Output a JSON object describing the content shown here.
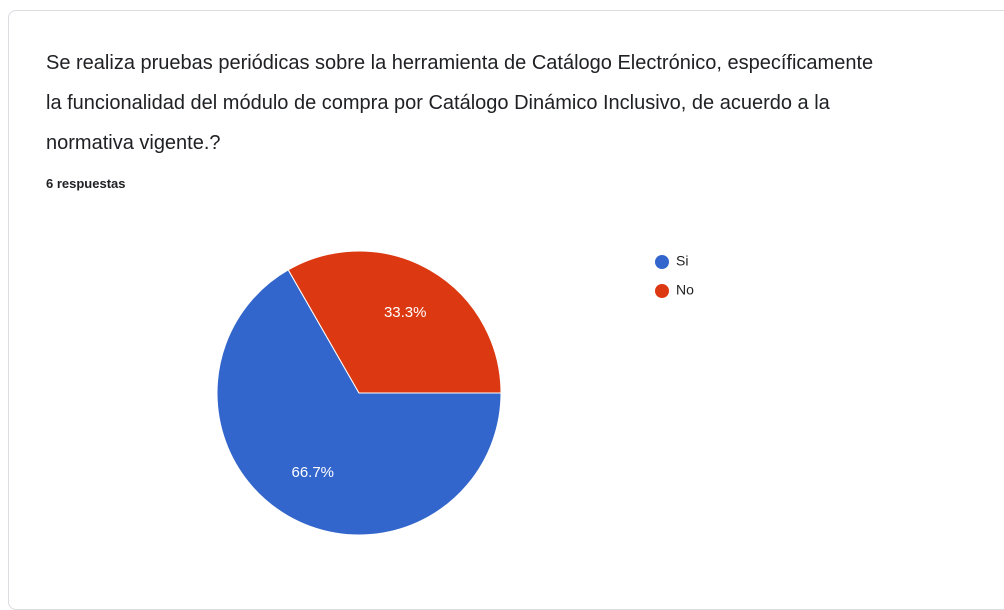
{
  "chart_data": {
    "type": "pie",
    "title": "Se realiza pruebas periódicas sobre la herramienta de Catálogo Electrónico, específicamente la funcionalidad del módulo de compra por Catálogo Dinámico Inclusivo, de acuerdo a la normativa vigente.?",
    "subtitle": "6 respuestas",
    "categories": [
      "Si",
      "No"
    ],
    "values": [
      66.7,
      33.3
    ],
    "value_labels": [
      "66.7%",
      "33.3%"
    ],
    "colors": [
      "#3366cc",
      "#dc3912"
    ],
    "legend": "right"
  }
}
